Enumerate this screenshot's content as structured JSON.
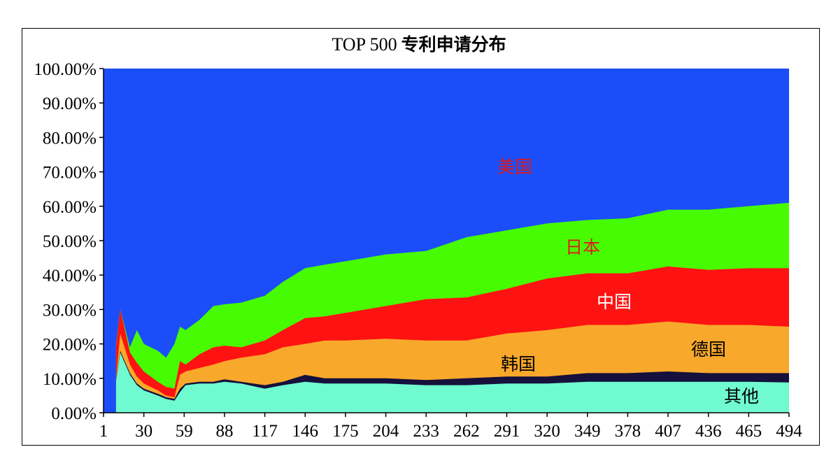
{
  "chart_data": {
    "type": "area",
    "stacked": "percent",
    "title": "TOP 500",
    "title_cn": "专利申请分布",
    "x_ticks": [
      "1",
      "30",
      "59",
      "88",
      "117",
      "146",
      "175",
      "204",
      "233",
      "262",
      "291",
      "320",
      "349",
      "378",
      "407",
      "436",
      "465",
      "494"
    ],
    "y_ticks": [
      "0.00%",
      "10.00%",
      "20.00%",
      "30.00%",
      "40.00%",
      "50.00%",
      "60.00%",
      "70.00%",
      "80.00%",
      "90.00%",
      "100.00%"
    ],
    "xlim": [
      1,
      494
    ],
    "ylim": [
      0,
      100
    ],
    "x": [
      1,
      5,
      10,
      13,
      20,
      25,
      30,
      40,
      46,
      52,
      56,
      60,
      70,
      80,
      88,
      100,
      117,
      130,
      146,
      160,
      175,
      204,
      233,
      262,
      291,
      320,
      349,
      378,
      407,
      436,
      465,
      494
    ],
    "series": [
      {
        "name": "其他",
        "color": "#70fad0",
        "values": [
          null,
          null,
          9.2,
          17.5,
          11,
          8,
          6.5,
          5,
          4,
          3.5,
          6,
          8,
          8.5,
          8.5,
          9,
          8.5,
          7,
          8,
          9,
          8.5,
          8.5,
          8.5,
          8,
          8,
          8.5,
          8.5,
          9,
          9,
          9,
          9,
          9,
          8.8
        ]
      },
      {
        "name": "韩国",
        "color": "#15103c",
        "values": [
          null,
          null,
          9.5,
          18,
          11.5,
          8.5,
          7,
          5.5,
          4.5,
          4,
          7,
          8.5,
          9,
          9,
          9.7,
          9,
          8,
          9,
          11,
          10,
          10,
          10,
          9.5,
          10,
          10.5,
          10.5,
          11.5,
          11.5,
          12,
          11.5,
          11.5,
          11.5
        ]
      },
      {
        "name": "德国",
        "color": "#f8a82a",
        "values": [
          null,
          null,
          9.5,
          23,
          14,
          10.5,
          8.5,
          6.5,
          5,
          4.5,
          11,
          12,
          13,
          14,
          15,
          16,
          17,
          19,
          20,
          21,
          21,
          21.5,
          21,
          21,
          23,
          24,
          25.5,
          25.5,
          26.5,
          25.5,
          25.5,
          25
        ]
      },
      {
        "name": "中国",
        "color": "#ff1212",
        "values": [
          null,
          null,
          19.5,
          30,
          17.5,
          14.5,
          12,
          9,
          7.5,
          7,
          15,
          14,
          17,
          19,
          19.5,
          19,
          21,
          24,
          27.5,
          28,
          29,
          31,
          33,
          33.5,
          36,
          39,
          40.5,
          40.5,
          42.5,
          41.5,
          42,
          42
        ]
      },
      {
        "name": "日本",
        "color": "#47fc03",
        "values": [
          null,
          null,
          20,
          30,
          19,
          24,
          20,
          18,
          16,
          20,
          25,
          24,
          27,
          31,
          31.5,
          32,
          34,
          38,
          42,
          43,
          44,
          46,
          47,
          51,
          53,
          55,
          56,
          56.5,
          59,
          59,
          60,
          61
        ]
      },
      {
        "name": "美国",
        "color": "#1b4ef9",
        "values": [
          100,
          100,
          100,
          100,
          100,
          100,
          100,
          100,
          100,
          100,
          100,
          100,
          100,
          100,
          100,
          100,
          100,
          100,
          100,
          100,
          100,
          100,
          100,
          100,
          100,
          100,
          100,
          100,
          100,
          100,
          100,
          100
        ]
      }
    ],
    "annotations": [
      "美国",
      "日本",
      "中国",
      "德国",
      "韩国",
      "其他"
    ],
    "annotation_colors": [
      "#e01818",
      "#e01818",
      "#ffffff",
      "#000000",
      "#000000",
      "#000000"
    ],
    "grid": false
  }
}
